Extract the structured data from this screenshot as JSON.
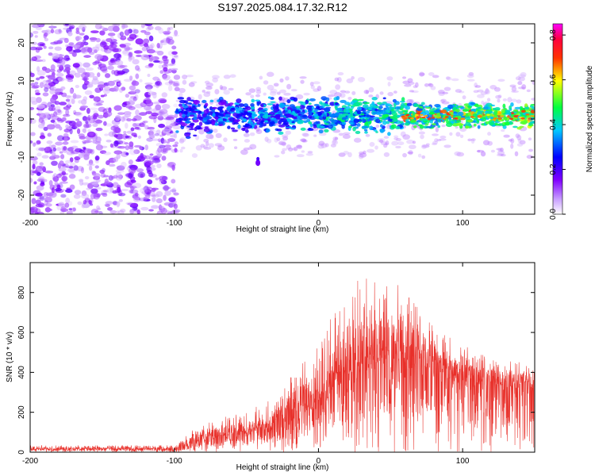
{
  "title": "S197.2025.084.17.32.R12",
  "chart_data": [
    {
      "type": "heatmap",
      "xlabel": "Height of straight line (km)",
      "ylabel": "Frequency (Hz)",
      "xlim": [
        -200,
        150
      ],
      "ylim": [
        -25,
        25
      ],
      "xticks": [
        -200,
        -100,
        0,
        100
      ],
      "yticks": [
        -20,
        -10,
        0,
        10,
        20
      ],
      "colorbar": {
        "label": "Normalized spectral amplitude",
        "range": [
          0.0,
          0.85
        ],
        "ticks": [
          "0.0",
          "0.2",
          "0.4",
          "0.6",
          "0.8"
        ],
        "colormap": [
          "#ffffff",
          "#8000ff",
          "#0000ff",
          "#00ffff",
          "#00ff00",
          "#ffff00",
          "#ff0000",
          "#ff00ff"
        ]
      },
      "regions": [
        {
          "x_range": [
            -200,
            -98
          ],
          "frequency_range": [
            -25,
            25
          ],
          "amplitude": "0.0-0.15",
          "pattern": "noise"
        },
        {
          "x_range": [
            -98,
            150
          ],
          "frequency_center": 1,
          "frequency_halfwidth": 5,
          "amplitude": "0.1-0.8",
          "pattern": "band"
        },
        {
          "x": -42,
          "frequency": -11,
          "amplitude": "0.15",
          "pattern": "spot"
        }
      ]
    },
    {
      "type": "line",
      "xlabel": "Height of straight line (km)",
      "ylabel": "SNR (10 * v/v)",
      "xlim": [
        -200,
        150
      ],
      "ylim": [
        0,
        950
      ],
      "xticks": [
        -200,
        -100,
        0,
        100
      ],
      "yticks": [
        0,
        200,
        400,
        600,
        800
      ],
      "series": [
        {
          "color": "#e8302a",
          "x": [
            -200,
            -180,
            -160,
            -140,
            -120,
            -100,
            -95,
            -90,
            -80,
            -70,
            -60,
            -50,
            -40,
            -30,
            -20,
            -10,
            0,
            10,
            20,
            30,
            40,
            50,
            60,
            70,
            80,
            90,
            100,
            110,
            120,
            130,
            140,
            150
          ],
          "y_mean": [
            15,
            15,
            15,
            15,
            15,
            15,
            20,
            35,
            60,
            75,
            80,
            90,
            110,
            140,
            170,
            210,
            260,
            320,
            390,
            420,
            440,
            450,
            440,
            420,
            390,
            370,
            350,
            340,
            330,
            325,
            320,
            320
          ],
          "y_peak": [
            35,
            35,
            35,
            35,
            35,
            35,
            60,
            95,
            150,
            170,
            190,
            200,
            250,
            300,
            370,
            470,
            620,
            680,
            830,
            950,
            900,
            870,
            820,
            750,
            650,
            590,
            530,
            520,
            480,
            460,
            450,
            440
          ]
        }
      ]
    }
  ]
}
